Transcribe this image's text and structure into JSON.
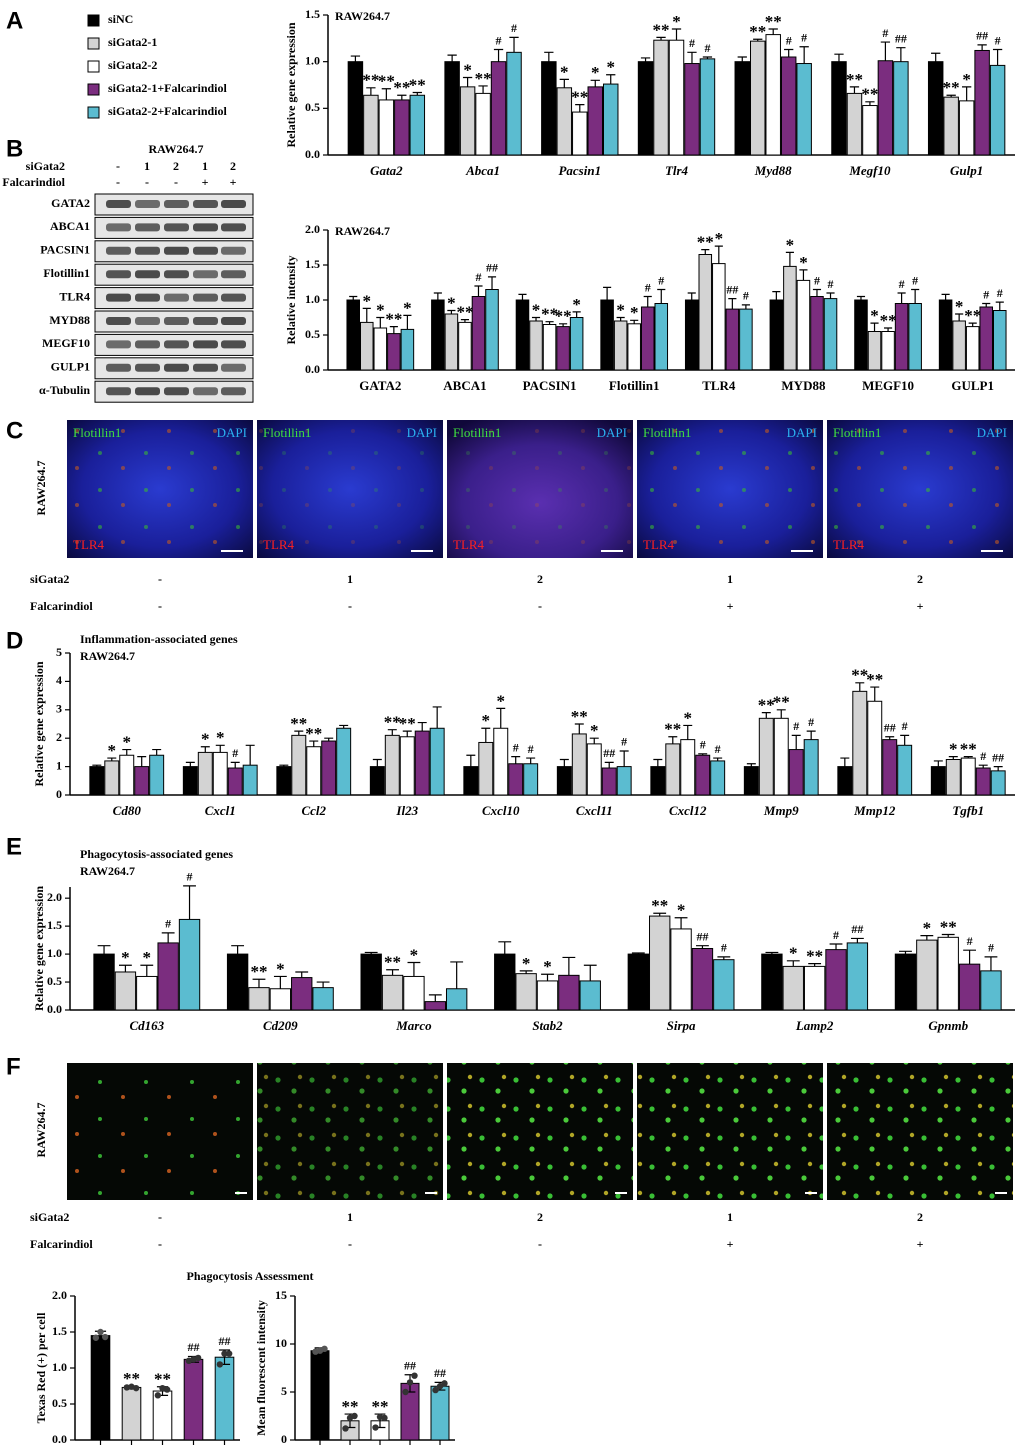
{
  "panels": [
    "A",
    "B",
    "C",
    "D",
    "E",
    "F"
  ],
  "blot": {
    "header": "RAW264.7",
    "rows": [
      {
        "label": "siGata2",
        "values": [
          "-",
          "1",
          "2",
          "1",
          "2"
        ]
      },
      {
        "label": "Falcarindiol",
        "values": [
          "-",
          "-",
          "-",
          "+",
          "+"
        ]
      }
    ],
    "bands": [
      "GATA2",
      "ABCA1",
      "PACSIN1",
      "Flotillin1",
      "TLR4",
      "MYD88",
      "MEGF10",
      "GULP1",
      "α-Tubulin"
    ]
  },
  "images_c": {
    "side_label": "RAW264.7",
    "panels": [
      {
        "green": "Flotillin1",
        "blue": "DAPI",
        "red": "TLR4"
      },
      {
        "green": "Flotillin1",
        "blue": "DAPI",
        "red": "TLR4"
      },
      {
        "green": "Flotillin1",
        "blue": "DAPI",
        "red": "TLR4"
      },
      {
        "green": "Flotillin1",
        "blue": "DAPI",
        "red": "TLR4"
      },
      {
        "green": "Flotillin1",
        "blue": "DAPI",
        "red": "TLR4"
      }
    ],
    "conditions": [
      {
        "label": "siGata2",
        "values": [
          "-",
          "1",
          "2",
          "1",
          "2"
        ]
      },
      {
        "label": "Falcarindiol",
        "values": [
          "-",
          "-",
          "-",
          "+",
          "+"
        ]
      }
    ]
  },
  "images_f": {
    "side_label": "RAW264.7",
    "conditions": [
      {
        "label": "siGata2",
        "values": [
          "-",
          "1",
          "2",
          "1",
          "2"
        ]
      },
      {
        "label": "Falcarindiol",
        "values": [
          "-",
          "-",
          "-",
          "+",
          "+"
        ]
      }
    ]
  },
  "chart_data": [
    {
      "type": "bar",
      "title": "RAW264.7",
      "ylabel": "Relative gene expression",
      "categories": [
        "Gata2",
        "Abca1",
        "Pacsin1",
        "Tlr4",
        "Myd88",
        "Megf10",
        "Gulp1"
      ],
      "ylim": [
        0,
        1.5
      ],
      "yticks": [
        {
          "value": 0,
          "label": "0.0"
        },
        0.5,
        {
          "value": 1,
          "label": "1.0"
        },
        1.5
      ],
      "series": [
        {
          "name": "siNC",
          "color": "#000000",
          "values": [
            1,
            1,
            1,
            1,
            1,
            1,
            1
          ],
          "errors": [
            0.06,
            0.07,
            0.1,
            0.04,
            0.05,
            0.08,
            0.09
          ],
          "significance": [
            null,
            null,
            null,
            null,
            null,
            null,
            null
          ]
        },
        {
          "name": "siGata2-1",
          "color": "#d3d3d3",
          "values": [
            0.64,
            0.73,
            0.72,
            1.23,
            1.22,
            0.66,
            0.62
          ],
          "errors": [
            0.08,
            0.1,
            0.09,
            0.03,
            0.02,
            0.07,
            0.02
          ],
          "significance": [
            "**",
            "*",
            "*",
            "**",
            "**",
            "**",
            "**"
          ]
        },
        {
          "name": "siGata2-2",
          "color": "#ffffff",
          "values": [
            0.59,
            0.66,
            0.46,
            1.23,
            1.29,
            0.53,
            0.58
          ],
          "errors": [
            0.12,
            0.08,
            0.08,
            0.12,
            0.06,
            0.04,
            0.15
          ],
          "significance": [
            "**",
            "**",
            "**",
            "*",
            "**",
            "**",
            "*"
          ]
        },
        {
          "name": "siGata2-1+Falcarindiol",
          "color": "#7b2d7f",
          "values": [
            0.59,
            1.0,
            0.73,
            0.98,
            1.05,
            1.01,
            1.12
          ],
          "errors": [
            0.05,
            0.13,
            0.07,
            0.12,
            0.08,
            0.2,
            0.06
          ],
          "significance": [
            "**",
            "#",
            "*",
            "#",
            "#",
            "#",
            "##"
          ]
        },
        {
          "name": "siGata2-2+Falcarindiol",
          "color": "#5bbcd0",
          "values": [
            0.64,
            1.1,
            0.76,
            1.03,
            0.98,
            1.0,
            0.96
          ],
          "errors": [
            0.03,
            0.16,
            0.1,
            0.02,
            0.18,
            0.15,
            0.17
          ],
          "significance": [
            "**",
            "#",
            "*",
            "#",
            "#",
            "##",
            "#"
          ]
        }
      ]
    },
    {
      "type": "bar",
      "title": "RAW264.7",
      "ylabel": "Relative intensity",
      "categories": [
        "GATA2",
        "ABCA1",
        "PACSIN1",
        "Flotillin1",
        "TLR4",
        "MYD88",
        "MEGF10",
        "GULP1"
      ],
      "ylim": [
        0,
        2
      ],
      "yticks": [
        {
          "value": 0,
          "label": "0.0"
        },
        0.5,
        {
          "value": 1,
          "label": "1.0"
        },
        1.5,
        {
          "value": 2,
          "label": "2.0"
        }
      ],
      "series": [
        {
          "name": "siNC",
          "color": "#000000",
          "values": [
            1,
            1,
            1,
            1,
            1,
            1,
            1,
            1
          ],
          "errors": [
            0.05,
            0.1,
            0.08,
            0.18,
            0.1,
            0.12,
            0.05,
            0.08
          ],
          "significance": [
            null,
            null,
            null,
            null,
            null,
            null,
            null,
            null
          ]
        },
        {
          "name": "siGata2-1",
          "color": "#d3d3d3",
          "values": [
            0.68,
            0.8,
            0.7,
            0.7,
            1.65,
            1.48,
            0.55,
            0.7
          ],
          "errors": [
            0.2,
            0.05,
            0.05,
            0.05,
            0.07,
            0.2,
            0.12,
            0.1
          ],
          "significance": [
            "*",
            "*",
            "*",
            "*",
            "**",
            "*",
            "*",
            "*"
          ]
        },
        {
          "name": "siGata2-2",
          "color": "#ffffff",
          "values": [
            0.6,
            0.68,
            0.65,
            0.66,
            1.52,
            1.28,
            0.55,
            0.62
          ],
          "errors": [
            0.15,
            0.04,
            0.04,
            0.05,
            0.25,
            0.15,
            0.05,
            0.05
          ],
          "significance": [
            "*",
            "**",
            "**",
            "*",
            "*",
            "*",
            "**",
            "**"
          ]
        },
        {
          "name": "siGata2-1+Falcarindiol",
          "color": "#7b2d7f",
          "values": [
            0.52,
            1.05,
            0.62,
            0.9,
            0.87,
            1.05,
            0.95,
            0.9
          ],
          "errors": [
            0.1,
            0.15,
            0.04,
            0.15,
            0.15,
            0.1,
            0.15,
            0.05
          ],
          "significance": [
            "**",
            "#",
            "**",
            "#",
            "##",
            "#",
            "#",
            "#"
          ]
        },
        {
          "name": "siGata2-2+Falcarindiol",
          "color": "#5bbcd0",
          "values": [
            0.58,
            1.15,
            0.75,
            0.95,
            0.87,
            1.02,
            0.95,
            0.85
          ],
          "errors": [
            0.2,
            0.18,
            0.08,
            0.2,
            0.06,
            0.08,
            0.2,
            0.12
          ],
          "significance": [
            "*",
            "##",
            "*",
            "#",
            "#",
            "#",
            "#",
            "#"
          ]
        }
      ]
    },
    {
      "type": "bar",
      "title": "Inflammation-associated genes",
      "subtitle": "RAW264.7",
      "ylabel": "Relative gene expression",
      "categories": [
        "Cd80",
        "Cxcl1",
        "Ccl2",
        "Il23",
        "Cxcl10",
        "Cxcl11",
        "Cxcl12",
        "Mmp9",
        "Mmp12",
        "Tgfb1"
      ],
      "ylim": [
        0,
        5
      ],
      "yticks": [
        0,
        1,
        2,
        3,
        4,
        5
      ],
      "series": [
        {
          "name": "siNC",
          "color": "#000000",
          "values": [
            1,
            1,
            1,
            1,
            1,
            1,
            1,
            1,
            1,
            1
          ],
          "errors": [
            0.05,
            0.15,
            0.05,
            0.25,
            0.4,
            0.25,
            0.25,
            0.1,
            0.3,
            0.2
          ],
          "significance": [
            null,
            null,
            null,
            null,
            null,
            null,
            null,
            null,
            null,
            null
          ]
        },
        {
          "name": "siGata2-1",
          "color": "#d3d3d3",
          "values": [
            1.2,
            1.5,
            2.1,
            2.1,
            1.85,
            2.15,
            1.8,
            2.7,
            3.65,
            1.25
          ],
          "errors": [
            0.1,
            0.2,
            0.15,
            0.2,
            0.5,
            0.35,
            0.25,
            0.2,
            0.3,
            0.1
          ],
          "significance": [
            "*",
            "*",
            "**",
            "**",
            "*",
            "**",
            "**",
            "**",
            "**",
            "*"
          ]
        },
        {
          "name": "siGata2-2",
          "color": "#ffffff",
          "values": [
            1.4,
            1.5,
            1.7,
            2.05,
            2.35,
            1.8,
            1.95,
            2.7,
            3.3,
            1.3
          ],
          "errors": [
            0.2,
            0.25,
            0.2,
            0.2,
            0.7,
            0.2,
            0.5,
            0.3,
            0.5,
            0.05
          ],
          "significance": [
            "*",
            "*",
            "**",
            "**",
            "*",
            "*",
            "*",
            "**",
            "**",
            "**"
          ]
        },
        {
          "name": "siGata2-1+Falcarindiol",
          "color": "#7b2d7f",
          "values": [
            1.0,
            0.95,
            1.9,
            2.25,
            1.1,
            0.95,
            1.4,
            1.6,
            1.95,
            0.95
          ],
          "errors": [
            0.35,
            0.2,
            0.1,
            0.3,
            0.25,
            0.2,
            0.05,
            0.5,
            0.1,
            0.1
          ],
          "significance": [
            null,
            "#",
            null,
            null,
            "#",
            "##",
            "#",
            "#",
            "##",
            "#"
          ]
        },
        {
          "name": "siGata2-2+Falcarindiol",
          "color": "#5bbcd0",
          "values": [
            1.4,
            1.05,
            2.35,
            2.35,
            1.1,
            1.0,
            1.2,
            1.95,
            1.75,
            0.85
          ],
          "errors": [
            0.2,
            0.7,
            0.1,
            0.75,
            0.2,
            0.55,
            0.1,
            0.3,
            0.35,
            0.15
          ],
          "significance": [
            null,
            null,
            null,
            null,
            "#",
            "#",
            "#",
            "#",
            "#",
            "##"
          ]
        }
      ]
    },
    {
      "type": "bar",
      "title": "Phagocytosis-associated genes",
      "subtitle": "RAW264.7",
      "ylabel": "Relative gene expression",
      "categories": [
        "Cd163",
        "Cd209",
        "Marco",
        "Stab2",
        "Sirpa",
        "Lamp2",
        "Gpnmb"
      ],
      "ylim": [
        0,
        2.2
      ],
      "yticks": [
        {
          "value": 0,
          "label": "0.0"
        },
        0.5,
        {
          "value": 1,
          "label": "1.0"
        },
        1.5,
        {
          "value": 2,
          "label": "2.0"
        }
      ],
      "series": [
        {
          "name": "siNC",
          "color": "#000000",
          "values": [
            1,
            1,
            1,
            1,
            1,
            1,
            1
          ],
          "errors": [
            0.15,
            0.15,
            0.03,
            0.22,
            0.02,
            0.03,
            0.05
          ],
          "significance": [
            null,
            null,
            null,
            null,
            null,
            null,
            null
          ]
        },
        {
          "name": "siGata2-1",
          "color": "#d3d3d3",
          "values": [
            0.68,
            0.4,
            0.62,
            0.65,
            1.68,
            0.78,
            1.25
          ],
          "errors": [
            0.12,
            0.15,
            0.1,
            0.05,
            0.05,
            0.1,
            0.08
          ],
          "significance": [
            "*",
            "**",
            "**",
            "*",
            "**",
            "*",
            "*"
          ]
        },
        {
          "name": "siGata2-2",
          "color": "#ffffff",
          "values": [
            0.6,
            0.38,
            0.6,
            0.52,
            1.45,
            0.78,
            1.3
          ],
          "errors": [
            0.2,
            0.22,
            0.25,
            0.12,
            0.2,
            0.05,
            0.05
          ],
          "significance": [
            "*",
            "*",
            "*",
            "*",
            "*",
            "**",
            "**"
          ]
        },
        {
          "name": "siGata2-1+Falcarindiol",
          "color": "#7b2d7f",
          "values": [
            1.2,
            0.58,
            0.15,
            0.62,
            1.1,
            1.08,
            0.82
          ],
          "errors": [
            0.18,
            0.1,
            0.12,
            0.32,
            0.05,
            0.1,
            0.25
          ],
          "significance": [
            "#",
            null,
            null,
            null,
            "##",
            "#",
            "#"
          ]
        },
        {
          "name": "siGata2-2+Falcarindiol",
          "color": "#5bbcd0",
          "values": [
            1.62,
            0.4,
            0.38,
            0.52,
            0.9,
            1.2,
            0.7
          ],
          "errors": [
            0.6,
            0.1,
            0.48,
            0.28,
            0.05,
            0.08,
            0.25
          ],
          "significance": [
            "#",
            null,
            null,
            null,
            "#",
            "##",
            "#"
          ]
        }
      ]
    },
    {
      "type": "bar",
      "title": "Phagocytosis Assessment",
      "ylabel": "Texas Red (+) per cell",
      "categories": [
        null,
        null,
        null,
        null,
        null
      ],
      "colors": [
        "#000000",
        "#d3d3d3",
        "#ffffff",
        "#7b2d7f",
        "#5bbcd0"
      ],
      "values": [
        1.45,
        0.73,
        0.68,
        1.12,
        1.15
      ],
      "errors": [
        0.06,
        0.02,
        0.06,
        0.04,
        0.1
      ],
      "significance": [
        null,
        "**",
        "**",
        "##",
        "##"
      ],
      "points": [
        [
          1.42,
          1.5,
          1.43
        ],
        [
          0.73,
          0.74,
          0.72
        ],
        [
          0.62,
          0.72,
          0.7
        ],
        [
          1.1,
          1.12,
          1.14
        ],
        [
          1.05,
          1.2,
          1.2
        ]
      ],
      "ylim": [
        0,
        2
      ],
      "yticks": [
        {
          "value": 0,
          "label": "0.0"
        },
        0.5,
        {
          "value": 1,
          "label": "1.0"
        },
        1.5,
        {
          "value": 2,
          "label": "2.0"
        }
      ]
    },
    {
      "type": "bar",
      "ylabel": "Mean fluorescent intensity",
      "categories": [
        null,
        null,
        null,
        null,
        null
      ],
      "colors": [
        "#000000",
        "#d3d3d3",
        "#ffffff",
        "#7b2d7f",
        "#5bbcd0"
      ],
      "values": [
        9.3,
        2.0,
        2.0,
        5.9,
        5.6
      ],
      "errors": [
        0.3,
        0.7,
        0.7,
        0.9,
        0.4
      ],
      "significance": [
        null,
        "**",
        "**",
        "##",
        "##"
      ],
      "points": [
        [
          9.2,
          9.3,
          9.5
        ],
        [
          1.2,
          2.3,
          2.5
        ],
        [
          1.3,
          2.4,
          2.3
        ],
        [
          5.0,
          6.0,
          6.7
        ],
        [
          5.2,
          5.6,
          5.9
        ]
      ],
      "ylim": [
        0,
        15
      ],
      "yticks": [
        0,
        5,
        10,
        15
      ]
    }
  ]
}
